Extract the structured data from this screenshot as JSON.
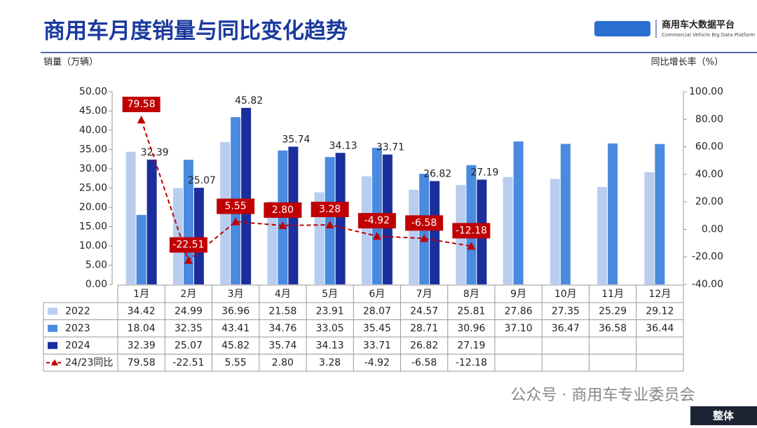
{
  "header": {
    "title": "商用车月度销量与同比变化趋势",
    "logo_name": "商用车大数据平台",
    "logo_sub": "Commercial Vehicle Big Data Platform"
  },
  "chart_data": {
    "type": "bar",
    "ylabel": "销量（万辆）",
    "y2label": "同比增长率（%）",
    "categories": [
      "1月",
      "2月",
      "3月",
      "4月",
      "5月",
      "6月",
      "7月",
      "8月",
      "9月",
      "10月",
      "11月",
      "12月"
    ],
    "ylim": [
      0,
      50
    ],
    "yticks": [
      {
        "value": 0,
        "label": "0.00"
      },
      {
        "value": 5,
        "label": "5.00"
      },
      {
        "value": 10,
        "label": "10.00"
      },
      {
        "value": 15,
        "label": "15.00"
      },
      {
        "value": 20,
        "label": "20.00"
      },
      {
        "value": 25,
        "label": "25.00"
      },
      {
        "value": 30,
        "label": "30.00"
      },
      {
        "value": 35,
        "label": "35.00"
      },
      {
        "value": 40,
        "label": "40.00"
      },
      {
        "value": 45,
        "label": "45.00"
      },
      {
        "value": 50,
        "label": "50.00"
      }
    ],
    "y2lim": [
      -40,
      100
    ],
    "y2ticks": [
      {
        "value": -40,
        "label": "-40.00"
      },
      {
        "value": -20,
        "label": "-20.00"
      },
      {
        "value": 0,
        "label": "0.00"
      },
      {
        "value": 20,
        "label": "20.00"
      },
      {
        "value": 40,
        "label": "40.00"
      },
      {
        "value": 60,
        "label": "60.00"
      },
      {
        "value": 80,
        "label": "80.00"
      },
      {
        "value": 100,
        "label": "100.00"
      }
    ],
    "series": [
      {
        "name": "2022",
        "type": "bar",
        "color": "#b9cdf0",
        "values": [
          34.42,
          24.99,
          36.96,
          21.58,
          23.91,
          28.07,
          24.57,
          25.81,
          27.86,
          27.35,
          25.29,
          29.12
        ]
      },
      {
        "name": "2023",
        "type": "bar",
        "color": "#4a8ae0",
        "values": [
          18.04,
          32.35,
          43.41,
          34.76,
          33.05,
          35.45,
          28.71,
          30.96,
          37.1,
          36.47,
          36.58,
          36.44
        ],
        "value_labels": [
          "18.04",
          "32.35",
          "43.41",
          "34.76",
          "33.05",
          "35.45",
          "28.71",
          "30.96",
          "37.10",
          "36.47",
          "36.58",
          "36.44"
        ]
      },
      {
        "name": "2024",
        "type": "bar",
        "color": "#1b2f9c",
        "bar_labels": true,
        "values": [
          32.39,
          25.07,
          45.82,
          35.74,
          34.13,
          33.71,
          26.82,
          27.19,
          null,
          null,
          null,
          null
        ]
      },
      {
        "name": "24/23同比",
        "type": "line",
        "axis": "y2",
        "color": "#c00000",
        "values": [
          79.58,
          -22.51,
          5.55,
          2.8,
          3.28,
          -4.92,
          -6.58,
          -12.18,
          null,
          null,
          null,
          null
        ],
        "value_labels": [
          "79.58",
          "-22.51",
          "5.55",
          "2.80",
          "3.28",
          "-4.92",
          "-6.58",
          "-12.18",
          null,
          null,
          null,
          null
        ]
      }
    ]
  },
  "footer": {
    "watermark": "公众号 · 商用车专业委员会",
    "tag": "整体"
  }
}
